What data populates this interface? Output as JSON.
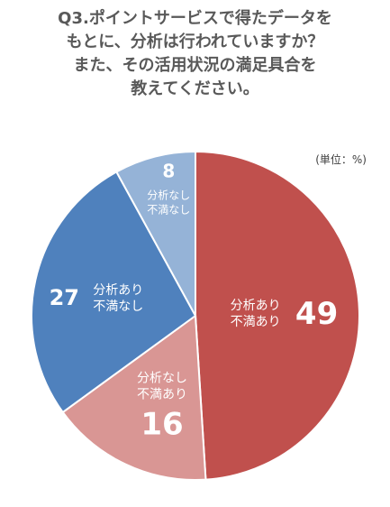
{
  "title_lines": [
    "Q3.ポイントサービスで得たデータを",
    "もとに、分析は行われていますか？",
    "また、その活用状況の満足具合を",
    "教えてください。"
  ],
  "unit_note": "(単位：%)",
  "chart_data": {
    "type": "pie",
    "title": "Q3.ポイントサービスで得たデータをもとに、分析は行われていますか？また、その活用状況の満足具合を教えてください。",
    "unit": "%",
    "slices": [
      {
        "label_lines": [
          "分析あり",
          "不満あり"
        ],
        "value": 49,
        "color": "#c0504d"
      },
      {
        "label_lines": [
          "分析なし",
          "不満あり"
        ],
        "value": 16,
        "color": "#d99694"
      },
      {
        "label_lines": [
          "分析あり",
          "不満なし"
        ],
        "value": 27,
        "color": "#4f81bd"
      },
      {
        "label_lines": [
          "分析なし",
          "不満なし"
        ],
        "value": 8,
        "color": "#95b3d7"
      }
    ]
  }
}
